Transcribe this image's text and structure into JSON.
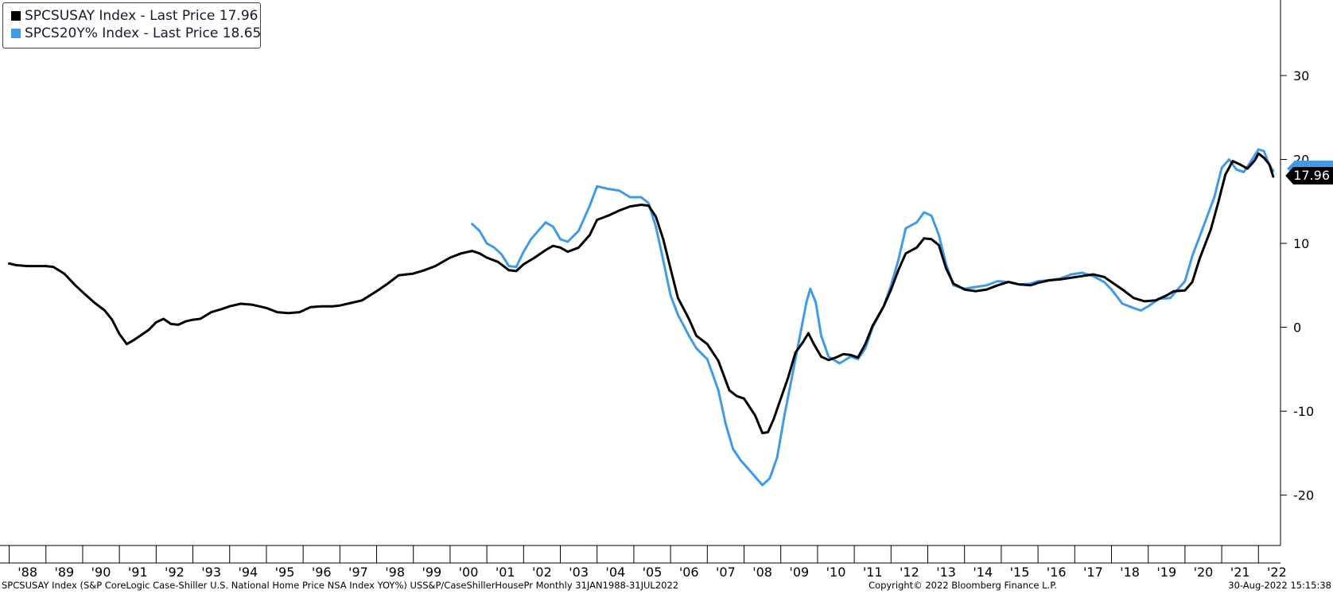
{
  "legend": {
    "items": [
      {
        "label": "SPCSUSAY Index - Last Price 17.96",
        "color": "#000000"
      },
      {
        "label": "SPCS20Y% Index - Last Price 18.65",
        "color": "#3f9bea"
      }
    ]
  },
  "footer": {
    "description": "SPCSUSAY Index (S&P CoreLogic Case-Shiller U.S. National Home Price NSA Index YOY%) USS&P/CaseShillerHousePr  Monthly 31JAN1988-31JUL2022",
    "copyright": "Copyright© 2022 Bloomberg Finance L.P.",
    "timestamp": "30-Aug-2022 15:15:38"
  },
  "last_value_label": "17.96",
  "chart_data": {
    "type": "line",
    "yticks": [
      30,
      20,
      10,
      0,
      -10,
      -20
    ],
    "ylim": [
      -26,
      39
    ],
    "xlim": [
      1987.75,
      2022.6
    ],
    "xtick_labels": [
      "'88",
      "'89",
      "'90",
      "'91",
      "'92",
      "'93",
      "'94",
      "'95",
      "'96",
      "'97",
      "'98",
      "'99",
      "'00",
      "'01",
      "'02",
      "'03",
      "'04",
      "'05",
      "'06",
      "'07",
      "'08",
      "'09",
      "'10",
      "'11",
      "'12",
      "'13",
      "'14",
      "'15",
      "'16",
      "'17",
      "'18",
      "'19",
      "'20",
      "'21",
      "'22"
    ],
    "xtick_years": [
      1988,
      1989,
      1990,
      1991,
      1992,
      1993,
      1994,
      1995,
      1996,
      1997,
      1998,
      1999,
      2000,
      2001,
      2002,
      2003,
      2004,
      2005,
      2006,
      2007,
      2008,
      2009,
      2010,
      2011,
      2012,
      2013,
      2014,
      2015,
      2016,
      2017,
      2018,
      2019,
      2020,
      2021,
      2022
    ],
    "series": [
      {
        "name": "SPCSUSAY Index",
        "color": "#000000",
        "points": [
          [
            1988.0,
            7.6
          ],
          [
            1988.2,
            7.4
          ],
          [
            1988.5,
            7.3
          ],
          [
            1988.8,
            7.3
          ],
          [
            1989.0,
            7.3
          ],
          [
            1989.2,
            7.2
          ],
          [
            1989.5,
            6.4
          ],
          [
            1989.8,
            5.0
          ],
          [
            1990.0,
            4.2
          ],
          [
            1990.3,
            3.0
          ],
          [
            1990.6,
            2.0
          ],
          [
            1990.8,
            0.9
          ],
          [
            1991.0,
            -0.8
          ],
          [
            1991.2,
            -2.0
          ],
          [
            1991.4,
            -1.5
          ],
          [
            1991.6,
            -0.9
          ],
          [
            1991.8,
            -0.3
          ],
          [
            1992.0,
            0.6
          ],
          [
            1992.2,
            1.0
          ],
          [
            1992.4,
            0.4
          ],
          [
            1992.6,
            0.3
          ],
          [
            1992.8,
            0.7
          ],
          [
            1993.0,
            0.9
          ],
          [
            1993.2,
            1.0
          ],
          [
            1993.5,
            1.8
          ],
          [
            1993.8,
            2.2
          ],
          [
            1994.0,
            2.5
          ],
          [
            1994.3,
            2.8
          ],
          [
            1994.6,
            2.7
          ],
          [
            1995.0,
            2.3
          ],
          [
            1995.3,
            1.8
          ],
          [
            1995.6,
            1.7
          ],
          [
            1995.9,
            1.8
          ],
          [
            1996.2,
            2.4
          ],
          [
            1996.5,
            2.5
          ],
          [
            1996.8,
            2.5
          ],
          [
            1997.0,
            2.6
          ],
          [
            1997.3,
            2.9
          ],
          [
            1997.6,
            3.2
          ],
          [
            1998.0,
            4.3
          ],
          [
            1998.3,
            5.2
          ],
          [
            1998.6,
            6.2
          ],
          [
            1999.0,
            6.4
          ],
          [
            1999.3,
            6.8
          ],
          [
            1999.6,
            7.3
          ],
          [
            2000.0,
            8.3
          ],
          [
            2000.3,
            8.8
          ],
          [
            2000.6,
            9.1
          ],
          [
            2000.8,
            8.8
          ],
          [
            2001.0,
            8.3
          ],
          [
            2001.3,
            7.8
          ],
          [
            2001.6,
            6.8
          ],
          [
            2001.8,
            6.7
          ],
          [
            2002.0,
            7.5
          ],
          [
            2002.3,
            8.3
          ],
          [
            2002.6,
            9.2
          ],
          [
            2002.8,
            9.7
          ],
          [
            2003.0,
            9.5
          ],
          [
            2003.2,
            9.0
          ],
          [
            2003.5,
            9.5
          ],
          [
            2003.8,
            11.0
          ],
          [
            2004.0,
            12.8
          ],
          [
            2004.3,
            13.3
          ],
          [
            2004.6,
            13.9
          ],
          [
            2004.9,
            14.4
          ],
          [
            2005.2,
            14.6
          ],
          [
            2005.4,
            14.5
          ],
          [
            2005.6,
            13.2
          ],
          [
            2005.8,
            10.5
          ],
          [
            2006.0,
            7.0
          ],
          [
            2006.2,
            3.5
          ],
          [
            2006.5,
            1.0
          ],
          [
            2006.7,
            -1.0
          ],
          [
            2007.0,
            -2.0
          ],
          [
            2007.3,
            -4.0
          ],
          [
            2007.6,
            -7.5
          ],
          [
            2007.8,
            -8.2
          ],
          [
            2008.0,
            -8.5
          ],
          [
            2008.3,
            -10.5
          ],
          [
            2008.5,
            -12.6
          ],
          [
            2008.65,
            -12.5
          ],
          [
            2008.8,
            -11.0
          ],
          [
            2009.0,
            -8.5
          ],
          [
            2009.2,
            -6.0
          ],
          [
            2009.4,
            -3.0
          ],
          [
            2009.6,
            -1.8
          ],
          [
            2009.75,
            -0.7
          ],
          [
            2009.9,
            -2.0
          ],
          [
            2010.1,
            -3.5
          ],
          [
            2010.3,
            -3.9
          ],
          [
            2010.5,
            -3.6
          ],
          [
            2010.7,
            -3.2
          ],
          [
            2010.9,
            -3.3
          ],
          [
            2011.1,
            -3.6
          ],
          [
            2011.3,
            -2.0
          ],
          [
            2011.5,
            0.2
          ],
          [
            2011.8,
            2.5
          ],
          [
            2012.0,
            4.5
          ],
          [
            2012.2,
            6.8
          ],
          [
            2012.4,
            8.8
          ],
          [
            2012.7,
            9.5
          ],
          [
            2012.9,
            10.6
          ],
          [
            2013.1,
            10.5
          ],
          [
            2013.3,
            9.8
          ],
          [
            2013.5,
            7.0
          ],
          [
            2013.7,
            5.2
          ],
          [
            2014.0,
            4.5
          ],
          [
            2014.3,
            4.3
          ],
          [
            2014.6,
            4.5
          ],
          [
            2014.9,
            5.0
          ],
          [
            2015.2,
            5.4
          ],
          [
            2015.5,
            5.1
          ],
          [
            2015.8,
            5.0
          ],
          [
            2016.0,
            5.3
          ],
          [
            2016.3,
            5.6
          ],
          [
            2016.6,
            5.7
          ],
          [
            2016.9,
            5.9
          ],
          [
            2017.2,
            6.1
          ],
          [
            2017.5,
            6.3
          ],
          [
            2017.8,
            6.0
          ],
          [
            2018.0,
            5.4
          ],
          [
            2018.3,
            4.5
          ],
          [
            2018.6,
            3.5
          ],
          [
            2018.9,
            3.1
          ],
          [
            2019.2,
            3.2
          ],
          [
            2019.5,
            3.8
          ],
          [
            2019.7,
            4.3
          ],
          [
            2020.0,
            4.4
          ],
          [
            2020.2,
            5.4
          ],
          [
            2020.4,
            8.2
          ],
          [
            2020.7,
            11.6
          ],
          [
            2020.9,
            14.8
          ],
          [
            2021.1,
            18.2
          ],
          [
            2021.3,
            19.8
          ],
          [
            2021.5,
            19.4
          ],
          [
            2021.7,
            18.9
          ],
          [
            2021.9,
            19.9
          ],
          [
            2022.0,
            20.7
          ],
          [
            2022.15,
            20.2
          ],
          [
            2022.3,
            19.4
          ],
          [
            2022.4,
            17.96
          ]
        ]
      },
      {
        "name": "SPCS20Y% Index",
        "color": "#3f9bea",
        "points": [
          [
            2000.6,
            12.3
          ],
          [
            2000.8,
            11.5
          ],
          [
            2001.0,
            10.0
          ],
          [
            2001.2,
            9.5
          ],
          [
            2001.4,
            8.7
          ],
          [
            2001.6,
            7.3
          ],
          [
            2001.8,
            7.2
          ],
          [
            2002.0,
            9.0
          ],
          [
            2002.2,
            10.5
          ],
          [
            2002.4,
            11.5
          ],
          [
            2002.6,
            12.5
          ],
          [
            2002.8,
            12.0
          ],
          [
            2003.0,
            10.5
          ],
          [
            2003.2,
            10.2
          ],
          [
            2003.5,
            11.5
          ],
          [
            2003.8,
            14.5
          ],
          [
            2004.0,
            16.8
          ],
          [
            2004.3,
            16.5
          ],
          [
            2004.6,
            16.3
          ],
          [
            2004.9,
            15.5
          ],
          [
            2005.2,
            15.5
          ],
          [
            2005.4,
            14.8
          ],
          [
            2005.6,
            12.0
          ],
          [
            2005.8,
            8.0
          ],
          [
            2006.0,
            3.8
          ],
          [
            2006.2,
            1.5
          ],
          [
            2006.5,
            -1.0
          ],
          [
            2006.7,
            -2.5
          ],
          [
            2007.0,
            -3.8
          ],
          [
            2007.3,
            -7.5
          ],
          [
            2007.5,
            -11.5
          ],
          [
            2007.7,
            -14.5
          ],
          [
            2007.9,
            -15.8
          ],
          [
            2008.1,
            -16.8
          ],
          [
            2008.3,
            -17.8
          ],
          [
            2008.5,
            -18.8
          ],
          [
            2008.7,
            -18.0
          ],
          [
            2008.9,
            -15.5
          ],
          [
            2009.1,
            -10.5
          ],
          [
            2009.3,
            -6.0
          ],
          [
            2009.5,
            -1.5
          ],
          [
            2009.7,
            3.0
          ],
          [
            2009.8,
            4.6
          ],
          [
            2009.95,
            3.0
          ],
          [
            2010.1,
            -1.0
          ],
          [
            2010.3,
            -3.5
          ],
          [
            2010.6,
            -4.3
          ],
          [
            2010.9,
            -3.5
          ],
          [
            2011.1,
            -3.8
          ],
          [
            2011.3,
            -2.5
          ],
          [
            2011.5,
            0.0
          ],
          [
            2011.8,
            2.5
          ],
          [
            2012.0,
            5.0
          ],
          [
            2012.2,
            8.0
          ],
          [
            2012.4,
            11.8
          ],
          [
            2012.7,
            12.5
          ],
          [
            2012.9,
            13.7
          ],
          [
            2013.1,
            13.3
          ],
          [
            2013.3,
            11.0
          ],
          [
            2013.5,
            7.5
          ],
          [
            2013.7,
            5.0
          ],
          [
            2014.0,
            4.6
          ],
          [
            2014.3,
            4.8
          ],
          [
            2014.6,
            5.0
          ],
          [
            2014.9,
            5.5
          ],
          [
            2015.2,
            5.4
          ],
          [
            2015.5,
            5.1
          ],
          [
            2015.8,
            5.2
          ],
          [
            2016.0,
            5.5
          ],
          [
            2016.3,
            5.6
          ],
          [
            2016.6,
            5.8
          ],
          [
            2016.9,
            6.3
          ],
          [
            2017.2,
            6.5
          ],
          [
            2017.5,
            6.1
          ],
          [
            2017.8,
            5.4
          ],
          [
            2018.0,
            4.5
          ],
          [
            2018.3,
            2.8
          ],
          [
            2018.6,
            2.3
          ],
          [
            2018.8,
            2.0
          ],
          [
            2019.0,
            2.5
          ],
          [
            2019.3,
            3.4
          ],
          [
            2019.6,
            3.5
          ],
          [
            2020.0,
            5.5
          ],
          [
            2020.2,
            8.5
          ],
          [
            2020.5,
            12.0
          ],
          [
            2020.8,
            15.5
          ],
          [
            2021.0,
            19.0
          ],
          [
            2021.2,
            20.0
          ],
          [
            2021.4,
            18.8
          ],
          [
            2021.6,
            18.5
          ],
          [
            2021.8,
            19.8
          ],
          [
            2022.0,
            21.2
          ],
          [
            2022.15,
            21.0
          ],
          [
            2022.3,
            19.3
          ],
          [
            2022.4,
            18.65
          ]
        ]
      }
    ]
  }
}
